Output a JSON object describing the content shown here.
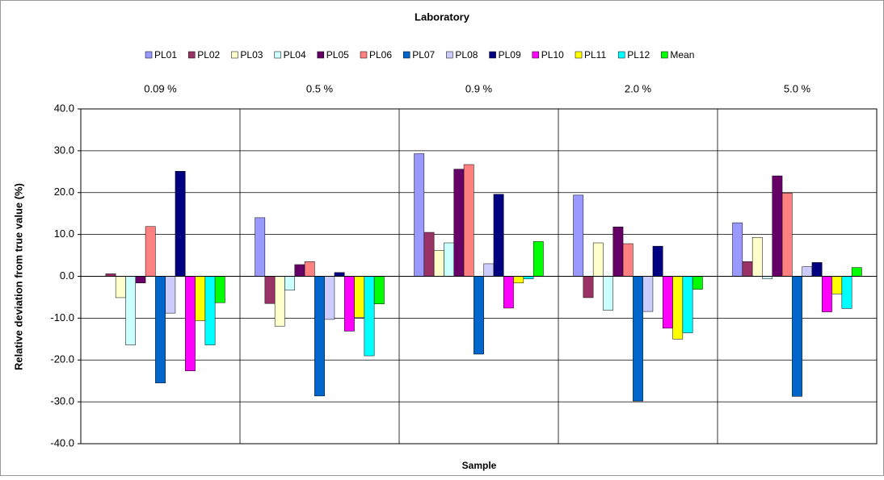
{
  "chart_data": {
    "type": "bar",
    "title": "Laboratory",
    "x_label": "Sample",
    "y_label": "Relative deviation from true value (%)",
    "categories": [
      "0.09 %",
      "0.5 %",
      "0.9 %",
      "2.0 %",
      "5.0 %"
    ],
    "series": [
      {
        "name": "PL01",
        "color": "#9999ff",
        "values": [
          0,
          14.0,
          29.3,
          19.4,
          12.8
        ]
      },
      {
        "name": "PL02",
        "color": "#993366",
        "values": [
          0.6,
          -6.5,
          10.5,
          -5.1,
          3.5
        ]
      },
      {
        "name": "PL03",
        "color": "#ffffcc",
        "values": [
          -5.1,
          -11.9,
          6.2,
          8.0,
          9.3
        ]
      },
      {
        "name": "PL04",
        "color": "#ccffff",
        "values": [
          -16.4,
          -3.3,
          8.0,
          -8.1,
          -0.6
        ]
      },
      {
        "name": "PL05",
        "color": "#660066",
        "values": [
          -1.6,
          2.8,
          25.6,
          11.8,
          24.0
        ]
      },
      {
        "name": "PL06",
        "color": "#ff8080",
        "values": [
          11.9,
          3.5,
          26.7,
          7.8,
          19.9
        ]
      },
      {
        "name": "PL07",
        "color": "#0066cc",
        "values": [
          -25.5,
          -28.6,
          -18.6,
          -29.8,
          -28.7
        ]
      },
      {
        "name": "PL08",
        "color": "#ccccff",
        "values": [
          -8.8,
          -10.3,
          3.0,
          -8.4,
          2.3
        ]
      },
      {
        "name": "PL09",
        "color": "#000080",
        "values": [
          25.1,
          0.9,
          19.6,
          7.2,
          3.3
        ]
      },
      {
        "name": "PL10",
        "color": "#ff00ff",
        "values": [
          -22.6,
          -13.1,
          -7.6,
          -12.4,
          -8.5
        ]
      },
      {
        "name": "PL11",
        "color": "#ffff00",
        "values": [
          -10.6,
          -9.8,
          -1.6,
          -15.0,
          -4.2
        ]
      },
      {
        "name": "PL12",
        "color": "#00ffff",
        "values": [
          -16.4,
          -19.0,
          -0.6,
          -13.5,
          -7.7
        ]
      },
      {
        "name": "Mean",
        "color": "#00ff00",
        "values": [
          -6.3,
          -6.6,
          8.3,
          -3.1,
          2.1
        ]
      }
    ],
    "ylim": [
      -40,
      40
    ],
    "yticks": [
      {
        "value": -40,
        "label": "-40.0"
      },
      {
        "value": -30,
        "label": "-30.0"
      },
      {
        "value": -20,
        "label": "-20.0"
      },
      {
        "value": -10,
        "label": "-10.0"
      },
      {
        "value": 0,
        "label": "0.0"
      },
      {
        "value": 10,
        "label": "10.0"
      },
      {
        "value": 20,
        "label": "20.0"
      },
      {
        "value": 30,
        "label": "30.0"
      },
      {
        "value": 40,
        "label": "40.0"
      }
    ],
    "grid": true,
    "legend": "top"
  }
}
